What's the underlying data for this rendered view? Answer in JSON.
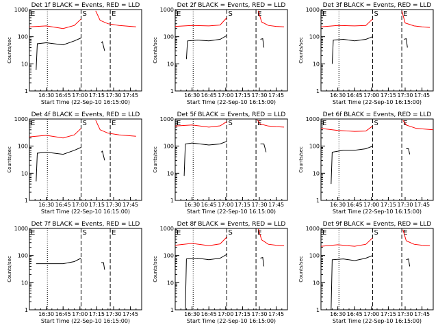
{
  "chart_data": [
    {
      "type": "line",
      "title": "Det 1f BLACK = Events, RED = LLD",
      "xlabel": "Start Time (22-Sep-10 16:15:00)",
      "ylabel": "Counts/sec",
      "yscale": "log",
      "ylim": [
        1,
        1000
      ],
      "xlim": [
        "16:15",
        "17:55"
      ],
      "xticks": [
        "16:30",
        "16:45",
        "17:00",
        "17:15",
        "17:30",
        "17:45"
      ],
      "yticks": [
        "1",
        "10",
        "100",
        "1000"
      ],
      "markers": [
        "E",
        "S",
        "E"
      ],
      "series": [
        {
          "color": "#ff0000",
          "segments": [
            {
              "x": [
                "16:15",
                "16:30",
                "16:45",
                "16:55",
                "17:01"
              ],
              "y": [
                230,
                250,
                200,
                260,
                450
              ]
            },
            {
              "x": [
                "17:14",
                "17:18",
                "17:25",
                "17:35",
                "17:50"
              ],
              "y": [
                900,
                400,
                300,
                260,
                230
              ]
            }
          ]
        },
        {
          "color": "#000000",
          "segments": [
            {
              "x": [
                "16:21",
                "16:22",
                "16:30",
                "16:45",
                "16:55",
                "17:01"
              ],
              "y": [
                6,
                55,
                60,
                50,
                70,
                90
              ]
            },
            {
              "x": [
                "17:19",
                "17:20",
                "17:22"
              ],
              "y": [
                60,
                65,
                30
              ]
            }
          ]
        }
      ]
    },
    {
      "type": "line",
      "title": "Det 2f BLACK = Events, RED = LLD",
      "xlabel": "Start Time (22-Sep-10 16:15:00)",
      "ylabel": "Counts/sec",
      "yscale": "log",
      "ylim": [
        1,
        1000
      ],
      "xlim": [
        "16:15",
        "17:55"
      ],
      "xticks": [
        "16:30",
        "16:45",
        "17:00",
        "17:15",
        "17:30",
        "17:45"
      ],
      "yticks": [
        "1",
        "10",
        "100",
        "1000"
      ],
      "markers": [
        "E",
        "S",
        "E"
      ],
      "series": [
        {
          "color": "#ff0000",
          "segments": [
            {
              "x": [
                "16:15",
                "16:30",
                "16:45",
                "16:55",
                "17:01"
              ],
              "y": [
                240,
                260,
                250,
                270,
                500
              ]
            },
            {
              "x": [
                "17:29",
                "17:32",
                "17:38",
                "17:45",
                "17:52"
              ],
              "y": [
                900,
                350,
                260,
                240,
                230
              ]
            }
          ]
        },
        {
          "color": "#000000",
          "segments": [
            {
              "x": [
                "16:25",
                "16:26",
                "16:35",
                "16:45",
                "16:55",
                "17:01"
              ],
              "y": [
                15,
                70,
                75,
                70,
                80,
                110
              ]
            },
            {
              "x": [
                "17:31",
                "17:33",
                "17:34"
              ],
              "y": [
                80,
                85,
                40
              ]
            }
          ]
        }
      ]
    },
    {
      "type": "line",
      "title": "Det 3f BLACK = Events, RED = LLD",
      "xlabel": "Start Time (22-Sep-10 16:15:00)",
      "ylabel": "Counts/sec",
      "yscale": "log",
      "ylim": [
        1,
        1000
      ],
      "xlim": [
        "16:15",
        "17:55"
      ],
      "xticks": [
        "16:30",
        "16:45",
        "17:00",
        "17:15",
        "17:30",
        "17:45"
      ],
      "yticks": [
        "1",
        "10",
        "100",
        "1000"
      ],
      "markers": [
        "E",
        "S",
        "E"
      ],
      "series": [
        {
          "color": "#ff0000",
          "segments": [
            {
              "x": [
                "16:15",
                "16:30",
                "16:45",
                "16:55",
                "17:01"
              ],
              "y": [
                230,
                260,
                250,
                260,
                450
              ]
            },
            {
              "x": [
                "17:27",
                "17:30",
                "17:38",
                "17:45",
                "17:52"
              ],
              "y": [
                900,
                320,
                250,
                230,
                220
              ]
            }
          ]
        },
        {
          "color": "#000000",
          "segments": [
            {
              "x": [
                "16:25",
                "16:26",
                "16:35",
                "16:45",
                "16:55",
                "17:01"
              ],
              "y": [
                10,
                75,
                80,
                70,
                80,
                100
              ]
            },
            {
              "x": [
                "17:29",
                "17:31",
                "17:32"
              ],
              "y": [
                80,
                85,
                40
              ]
            }
          ]
        }
      ]
    },
    {
      "type": "line",
      "title": "Det 4f BLACK = Events, RED = LLD",
      "xlabel": "Start Time (22-Sep-10 16:15:00)",
      "ylabel": "Counts/sec",
      "yscale": "log",
      "ylim": [
        1,
        1000
      ],
      "xlim": [
        "16:15",
        "17:55"
      ],
      "xticks": [
        "16:30",
        "16:45",
        "17:00",
        "17:15",
        "17:30",
        "17:45"
      ],
      "yticks": [
        "1",
        "10",
        "100",
        "1000"
      ],
      "markers": [
        "E",
        "S",
        "E"
      ],
      "series": [
        {
          "color": "#ff0000",
          "segments": [
            {
              "x": [
                "16:15",
                "16:30",
                "16:45",
                "16:55",
                "17:01"
              ],
              "y": [
                220,
                250,
                200,
                260,
                450
              ]
            },
            {
              "x": [
                "17:14",
                "17:18",
                "17:25",
                "17:35",
                "17:50"
              ],
              "y": [
                900,
                400,
                300,
                260,
                230
              ]
            }
          ]
        },
        {
          "color": "#000000",
          "segments": [
            {
              "x": [
                "16:21",
                "16:22",
                "16:30",
                "16:45",
                "16:55",
                "17:01"
              ],
              "y": [
                5,
                55,
                60,
                50,
                70,
                90
              ]
            },
            {
              "x": [
                "17:19",
                "17:20",
                "17:22"
              ],
              "y": [
                60,
                65,
                30
              ]
            }
          ]
        }
      ]
    },
    {
      "type": "line",
      "title": "Det 5f BLACK = Events, RED = LLD",
      "xlabel": "Start Time (22-Sep-10 16:15:00)",
      "ylabel": "Counts/sec",
      "yscale": "log",
      "ylim": [
        1,
        1000
      ],
      "xlim": [
        "16:15",
        "17:55"
      ],
      "xticks": [
        "16:30",
        "16:45",
        "17:00",
        "17:15",
        "17:30",
        "17:45"
      ],
      "yticks": [
        "1",
        "10",
        "100",
        "1000"
      ],
      "markers": [
        "E",
        "S",
        "E"
      ],
      "series": [
        {
          "color": "#ff0000",
          "segments": [
            {
              "x": [
                "16:15",
                "16:30",
                "16:45",
                "16:55",
                "17:01"
              ],
              "y": [
                550,
                600,
                500,
                560,
                800
              ]
            },
            {
              "x": [
                "17:28",
                "17:31",
                "17:38",
                "17:45",
                "17:52"
              ],
              "y": [
                950,
                650,
                550,
                520,
                500
              ]
            }
          ]
        },
        {
          "color": "#000000",
          "segments": [
            {
              "x": [
                "16:23",
                "16:24",
                "16:30",
                "16:45",
                "16:55",
                "17:01"
              ],
              "y": [
                8,
                120,
                130,
                110,
                120,
                150
              ]
            },
            {
              "x": [
                "17:31",
                "17:34",
                "17:36"
              ],
              "y": [
                120,
                120,
                60
              ]
            }
          ]
        }
      ]
    },
    {
      "type": "line",
      "title": "Det 6f BLACK = Events, RED = LLD",
      "xlabel": "Start Time (22-Sep-10 16:15:00)",
      "ylabel": "Counts/sec",
      "yscale": "log",
      "ylim": [
        1,
        1000
      ],
      "xlim": [
        "16:15",
        "17:55"
      ],
      "xticks": [
        "16:30",
        "16:45",
        "17:00",
        "17:15",
        "17:30",
        "17:45"
      ],
      "yticks": [
        "1",
        "10",
        "100",
        "1000"
      ],
      "markers": [
        "E",
        "S",
        "E"
      ],
      "series": [
        {
          "color": "#ff0000",
          "segments": [
            {
              "x": [
                "16:15",
                "16:30",
                "16:45",
                "16:55",
                "17:01"
              ],
              "y": [
                450,
                380,
                350,
                360,
                550
              ]
            },
            {
              "x": [
                "17:28",
                "17:31",
                "17:40",
                "17:55"
              ],
              "y": [
                900,
                600,
                450,
                400
              ]
            }
          ]
        },
        {
          "color": "#000000",
          "segments": [
            {
              "x": [
                "16:24",
                "16:25",
                "16:35",
                "16:45",
                "16:55",
                "17:01"
              ],
              "y": [
                4,
                60,
                70,
                70,
                80,
                100
              ]
            },
            {
              "x": [
                "17:31",
                "17:33",
                "17:34"
              ],
              "y": [
                80,
                80,
                50
              ]
            }
          ]
        }
      ]
    },
    {
      "type": "line",
      "title": "Det 7f BLACK = Events, RED = LLD",
      "xlabel": "Start Time (22-Sep-10 16:15:00)",
      "ylabel": "Counts/sec",
      "yscale": "log",
      "ylim": [
        1,
        1000
      ],
      "xlim": [
        "16:15",
        "17:55"
      ],
      "xticks": [
        "16:30",
        "16:45",
        "17:00",
        "17:15",
        "17:30",
        "17:45"
      ],
      "yticks": [
        "1",
        "10",
        "100",
        "1000"
      ],
      "markers": [
        "E",
        "S",
        "E"
      ],
      "series": [
        {
          "color": "#000000",
          "segments": [
            {
              "x": [
                "16:21",
                "16:30",
                "16:45",
                "16:55",
                "17:01"
              ],
              "y": [
                50,
                50,
                50,
                60,
                80
              ]
            },
            {
              "x": [
                "17:19",
                "17:21",
                "17:22"
              ],
              "y": [
                55,
                55,
                30
              ]
            }
          ]
        }
      ]
    },
    {
      "type": "line",
      "title": "Det 8f BLACK = Events, RED = LLD",
      "xlabel": "Start Time (22-Sep-10 16:15:00)",
      "ylabel": "Counts/sec",
      "yscale": "log",
      "ylim": [
        1,
        1000
      ],
      "xlim": [
        "16:15",
        "17:55"
      ],
      "xticks": [
        "16:30",
        "16:45",
        "17:00",
        "17:15",
        "17:30",
        "17:45"
      ],
      "yticks": [
        "1",
        "10",
        "100",
        "1000"
      ],
      "markers": [
        "E",
        "S",
        "E"
      ],
      "series": [
        {
          "color": "#ff0000",
          "segments": [
            {
              "x": [
                "16:15",
                "16:30",
                "16:45",
                "16:55",
                "17:01"
              ],
              "y": [
                240,
                280,
                230,
                270,
                480
              ]
            },
            {
              "x": [
                "17:29",
                "17:32",
                "17:38",
                "17:45",
                "17:52"
              ],
              "y": [
                950,
                380,
                260,
                240,
                230
              ]
            }
          ]
        },
        {
          "color": "#000000",
          "segments": [
            {
              "x": [
                "16:24",
                "16:25",
                "16:35",
                "16:45",
                "16:55",
                "17:01"
              ],
              "y": [
                1,
                75,
                80,
                70,
                80,
                110
              ]
            },
            {
              "x": [
                "17:31",
                "17:33",
                "17:34"
              ],
              "y": [
                80,
                85,
                40
              ]
            }
          ]
        }
      ]
    },
    {
      "type": "line",
      "title": "Det 9f BLACK = Events, RED = LLD",
      "xlabel": "Start Time (22-Sep-10 16:15:00)",
      "ylabel": "Counts/sec",
      "yscale": "log",
      "ylim": [
        1,
        1000
      ],
      "xlim": [
        "16:15",
        "17:55"
      ],
      "xticks": [
        "16:30",
        "16:45",
        "17:00",
        "17:15",
        "17:30",
        "17:45"
      ],
      "yticks": [
        "1",
        "10",
        "100",
        "1000"
      ],
      "markers": [
        "E",
        "S",
        "E"
      ],
      "series": [
        {
          "color": "#ff0000",
          "segments": [
            {
              "x": [
                "16:15",
                "16:30",
                "16:45",
                "16:55",
                "17:01"
              ],
              "y": [
                220,
                250,
                220,
                260,
                450
              ]
            },
            {
              "x": [
                "17:28",
                "17:31",
                "17:38",
                "17:45",
                "17:52"
              ],
              "y": [
                900,
                350,
                260,
                240,
                230
              ]
            }
          ]
        },
        {
          "color": "#000000",
          "segments": [
            {
              "x": [
                "16:24",
                "16:25",
                "16:35",
                "16:45",
                "16:55",
                "17:01"
              ],
              "y": [
                1,
                70,
                75,
                65,
                80,
                100
              ]
            },
            {
              "x": [
                "17:31",
                "17:33",
                "17:34"
              ],
              "y": [
                70,
                75,
                40
              ]
            }
          ]
        }
      ]
    }
  ]
}
